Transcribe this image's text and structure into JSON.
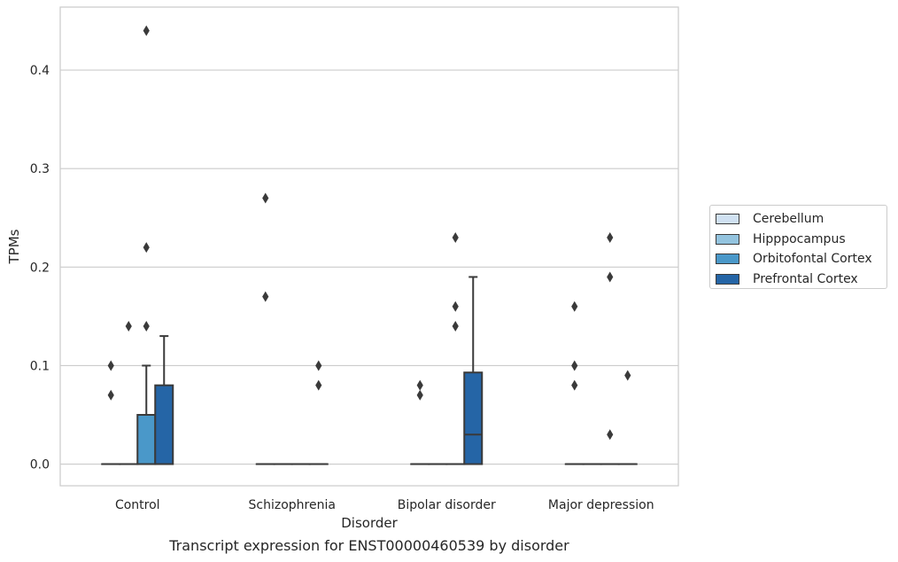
{
  "caption": "Transcript expression for ENST00000460539 by disorder",
  "colors": {
    "Cerebellum": "#d0e1f2",
    "Hipppocampus": "#94c4df",
    "Orbitofontal Cortex": "#4a98c9",
    "Prefrontal Cortex": "#2565a6",
    "outline": "#3a3a3a",
    "grid": "#cccccc"
  },
  "chart_data": {
    "type": "box",
    "title": "",
    "xlabel": "Disorder",
    "ylabel": "TPMs",
    "categories": [
      "Control",
      "Schizophrenia",
      "Bipolar disorder",
      "Major depression"
    ],
    "ylim": [
      -0.022,
      0.464
    ],
    "yticks": [
      "0.0",
      "0.1",
      "0.2",
      "0.3",
      "0.4"
    ],
    "grid": "horizontal",
    "legend_position": "right",
    "series": [
      {
        "name": "Cerebellum",
        "boxes": [
          {
            "q1": 0,
            "median": 0,
            "q3": 0,
            "whisker_low": 0,
            "whisker_high": 0,
            "outliers": []
          },
          {
            "q1": 0,
            "median": 0,
            "q3": 0,
            "whisker_low": 0,
            "whisker_high": 0,
            "outliers": [
              0.27,
              0.17
            ]
          },
          {
            "q1": 0,
            "median": 0,
            "q3": 0,
            "whisker_low": 0,
            "whisker_high": 0,
            "outliers": []
          },
          {
            "q1": 0,
            "median": 0,
            "q3": 0,
            "whisker_low": 0,
            "whisker_high": 0,
            "outliers": []
          }
        ]
      },
      {
        "name": "Hipppocampus",
        "boxes": [
          {
            "q1": 0,
            "median": 0,
            "q3": 0,
            "whisker_low": 0,
            "whisker_high": 0,
            "outliers": [
              0.14
            ]
          },
          {
            "q1": 0,
            "median": 0,
            "q3": 0,
            "whisker_low": 0,
            "whisker_high": 0,
            "outliers": []
          },
          {
            "q1": 0,
            "median": 0,
            "q3": 0,
            "whisker_low": 0,
            "whisker_high": 0,
            "outliers": []
          },
          {
            "q1": 0,
            "median": 0,
            "q3": 0,
            "whisker_low": 0,
            "whisker_high": 0,
            "outliers": []
          }
        ]
      },
      {
        "name": "Orbitofontal Cortex",
        "boxes": [
          {
            "q1": 0,
            "median": 0,
            "q3": 0.05,
            "whisker_low": 0,
            "whisker_high": 0.1,
            "outliers": [
              0.44,
              0.22,
              0.14
            ]
          },
          {
            "q1": 0,
            "median": 0,
            "q3": 0,
            "whisker_low": 0,
            "whisker_high": 0,
            "outliers": []
          },
          {
            "q1": 0,
            "median": 0,
            "q3": 0,
            "whisker_low": 0,
            "whisker_high": 0,
            "outliers": [
              0.23,
              0.16,
              0.14
            ]
          },
          {
            "q1": 0,
            "median": 0,
            "q3": 0,
            "whisker_low": 0,
            "whisker_high": 0,
            "outliers": [
              0.23,
              0.19,
              0.03
            ]
          }
        ]
      },
      {
        "name": "Prefrontal Cortex",
        "boxes": [
          {
            "q1": 0,
            "median": 0,
            "q3": 0.08,
            "whisker_low": 0,
            "whisker_high": 0.13,
            "outliers": []
          },
          {
            "q1": 0,
            "median": 0,
            "q3": 0,
            "whisker_low": 0,
            "whisker_high": 0,
            "outliers": [
              0.1,
              0.08
            ]
          },
          {
            "q1": 0,
            "median": 0.03,
            "q3": 0.093,
            "whisker_low": 0,
            "whisker_high": 0.19,
            "outliers": []
          },
          {
            "q1": 0,
            "median": 0,
            "q3": 0,
            "whisker_low": 0,
            "whisker_high": 0,
            "outliers": [
              0.09
            ]
          }
        ]
      }
    ],
    "extra_outliers": [
      {
        "category": "Control",
        "series": "Cerebellum",
        "values": [
          0.1,
          0.07
        ]
      },
      {
        "category": "Bipolar disorder",
        "series": "Cerebellum",
        "values": [
          0.08,
          0.07
        ]
      },
      {
        "category": "Major depression",
        "series": "Cerebellum",
        "values": [
          0.16,
          0.1,
          0.08
        ]
      }
    ]
  }
}
